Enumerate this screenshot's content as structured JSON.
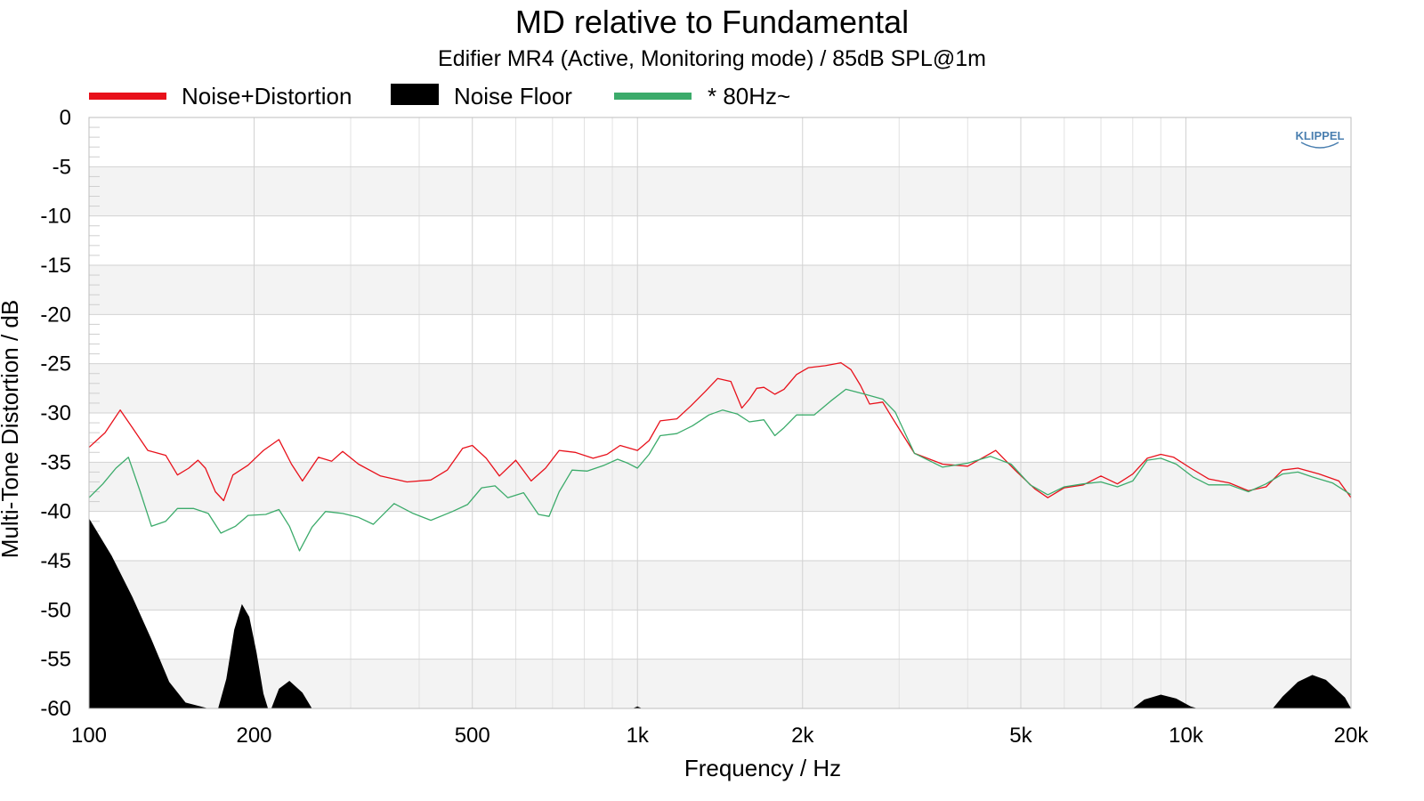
{
  "chart_data": {
    "type": "line",
    "title": "MD relative to Fundamental",
    "subtitle": "Edifier MR4 (Active, Monitoring mode) / 85dB SPL@1m",
    "xlabel": "Frequency / Hz",
    "ylabel": "Multi-Tone Distortion / dB",
    "xscale": "log",
    "xlim": [
      100,
      20000
    ],
    "ylim": [
      -60,
      0
    ],
    "x_ticks": [
      100,
      200,
      500,
      1000,
      2000,
      5000,
      10000,
      20000
    ],
    "x_tick_labels": [
      "100",
      "200",
      "500",
      "1k",
      "2k",
      "5k",
      "10k",
      "20k"
    ],
    "y_ticks": [
      0,
      -5,
      -10,
      -15,
      -20,
      -25,
      -30,
      -35,
      -40,
      -45,
      -50,
      -55,
      -60
    ],
    "y_tick_labels": [
      "0",
      "-5",
      "-10",
      "-15",
      "-20",
      "-25",
      "-30",
      "-35",
      "-40",
      "-45",
      "-50",
      "-55",
      "-60"
    ],
    "grid": true,
    "legend_position": "top-left",
    "logo_text": "KLIPPEL",
    "series": [
      {
        "name": "Noise+Distortion",
        "style": "line",
        "color": "#e8111b",
        "points": [
          [
            100,
            -33.5
          ],
          [
            107,
            -32
          ],
          [
            114,
            -29.7
          ],
          [
            120,
            -31.5
          ],
          [
            128,
            -33.8
          ],
          [
            138,
            -34.3
          ],
          [
            145,
            -36.3
          ],
          [
            152,
            -35.6
          ],
          [
            158,
            -34.8
          ],
          [
            163,
            -35.6
          ],
          [
            170,
            -38
          ],
          [
            176,
            -38.9
          ],
          [
            183,
            -36.3
          ],
          [
            195,
            -35.3
          ],
          [
            208,
            -33.8
          ],
          [
            222,
            -32.7
          ],
          [
            234,
            -35.2
          ],
          [
            245,
            -36.9
          ],
          [
            262,
            -34.5
          ],
          [
            277,
            -34.9
          ],
          [
            290,
            -33.9
          ],
          [
            310,
            -35.2
          ],
          [
            340,
            -36.4
          ],
          [
            380,
            -37
          ],
          [
            420,
            -36.8
          ],
          [
            450,
            -35.8
          ],
          [
            480,
            -33.6
          ],
          [
            500,
            -33.3
          ],
          [
            530,
            -34.6
          ],
          [
            560,
            -36.4
          ],
          [
            600,
            -34.8
          ],
          [
            640,
            -36.9
          ],
          [
            680,
            -35.6
          ],
          [
            720,
            -33.8
          ],
          [
            770,
            -34
          ],
          [
            830,
            -34.6
          ],
          [
            880,
            -34.2
          ],
          [
            930,
            -33.3
          ],
          [
            1000,
            -33.8
          ],
          [
            1050,
            -32.8
          ],
          [
            1100,
            -30.8
          ],
          [
            1180,
            -30.6
          ],
          [
            1250,
            -29.3
          ],
          [
            1330,
            -27.8
          ],
          [
            1400,
            -26.5
          ],
          [
            1480,
            -26.8
          ],
          [
            1550,
            -29.5
          ],
          [
            1600,
            -28.6
          ],
          [
            1650,
            -27.5
          ],
          [
            1700,
            -27.4
          ],
          [
            1780,
            -28.1
          ],
          [
            1850,
            -27.6
          ],
          [
            1950,
            -26.1
          ],
          [
            2050,
            -25.4
          ],
          [
            2200,
            -25.2
          ],
          [
            2350,
            -24.9
          ],
          [
            2450,
            -25.6
          ],
          [
            2550,
            -27.2
          ],
          [
            2650,
            -29.1
          ],
          [
            2800,
            -28.9
          ],
          [
            2900,
            -30.3
          ],
          [
            3200,
            -34.1
          ],
          [
            3600,
            -35.2
          ],
          [
            4000,
            -35.4
          ],
          [
            4500,
            -33.8
          ],
          [
            4900,
            -35.9
          ],
          [
            5300,
            -37.7
          ],
          [
            5600,
            -38.6
          ],
          [
            6000,
            -37.6
          ],
          [
            6500,
            -37.3
          ],
          [
            7000,
            -36.4
          ],
          [
            7500,
            -37.2
          ],
          [
            8000,
            -36.2
          ],
          [
            8500,
            -34.6
          ],
          [
            9000,
            -34.2
          ],
          [
            9500,
            -34.5
          ],
          [
            10200,
            -35.6
          ],
          [
            11000,
            -36.7
          ],
          [
            12000,
            -37.1
          ],
          [
            13000,
            -37.9
          ],
          [
            14000,
            -37.5
          ],
          [
            15000,
            -35.8
          ],
          [
            16000,
            -35.6
          ],
          [
            17500,
            -36.2
          ],
          [
            19000,
            -36.9
          ],
          [
            20000,
            -38.6
          ]
        ]
      },
      {
        "name": "Noise Floor",
        "style": "filled",
        "color": "#000000",
        "points": [
          [
            100,
            -40.7
          ],
          [
            110,
            -44.5
          ],
          [
            120,
            -48.7
          ],
          [
            130,
            -53
          ],
          [
            140,
            -57.3
          ],
          [
            150,
            -59.4
          ],
          [
            165,
            -60
          ],
          [
            172,
            -60
          ],
          [
            178,
            -57
          ],
          [
            184,
            -52
          ],
          [
            190,
            -49.4
          ],
          [
            196,
            -50.7
          ],
          [
            202,
            -54.3
          ],
          [
            208,
            -58.5
          ],
          [
            212,
            -60
          ],
          [
            215,
            -60
          ],
          [
            222,
            -58
          ],
          [
            232,
            -57.2
          ],
          [
            245,
            -58.4
          ],
          [
            255,
            -60
          ],
          [
            980,
            -60
          ],
          [
            1000,
            -59.8
          ],
          [
            1020,
            -60
          ],
          [
            8000,
            -60
          ],
          [
            8400,
            -59.1
          ],
          [
            9000,
            -58.6
          ],
          [
            9600,
            -59
          ],
          [
            10200,
            -59.8
          ],
          [
            10500,
            -60
          ],
          [
            14400,
            -60
          ],
          [
            15000,
            -58.8
          ],
          [
            16000,
            -57.3
          ],
          [
            17000,
            -56.6
          ],
          [
            18000,
            -57.1
          ],
          [
            19500,
            -58.9
          ],
          [
            20000,
            -60
          ]
        ]
      },
      {
        "name": "* 80Hz~",
        "style": "line",
        "color": "#3cab6b",
        "points": [
          [
            100,
            -38.6
          ],
          [
            106,
            -37.2
          ],
          [
            112,
            -35.6
          ],
          [
            118,
            -34.5
          ],
          [
            124,
            -38
          ],
          [
            130,
            -41.5
          ],
          [
            138,
            -41
          ],
          [
            145,
            -39.7
          ],
          [
            155,
            -39.7
          ],
          [
            165,
            -40.2
          ],
          [
            174,
            -42.2
          ],
          [
            185,
            -41.5
          ],
          [
            195,
            -40.4
          ],
          [
            210,
            -40.3
          ],
          [
            222,
            -39.8
          ],
          [
            232,
            -41.5
          ],
          [
            242,
            -44
          ],
          [
            255,
            -41.6
          ],
          [
            270,
            -40
          ],
          [
            290,
            -40.2
          ],
          [
            310,
            -40.6
          ],
          [
            330,
            -41.3
          ],
          [
            360,
            -39.2
          ],
          [
            390,
            -40.2
          ],
          [
            420,
            -40.9
          ],
          [
            460,
            -40
          ],
          [
            490,
            -39.3
          ],
          [
            520,
            -37.6
          ],
          [
            550,
            -37.4
          ],
          [
            580,
            -38.6
          ],
          [
            620,
            -38.1
          ],
          [
            660,
            -40.3
          ],
          [
            690,
            -40.5
          ],
          [
            720,
            -38
          ],
          [
            760,
            -35.8
          ],
          [
            810,
            -35.9
          ],
          [
            870,
            -35.3
          ],
          [
            920,
            -34.7
          ],
          [
            960,
            -35.1
          ],
          [
            1000,
            -35.6
          ],
          [
            1050,
            -34.2
          ],
          [
            1100,
            -32.3
          ],
          [
            1180,
            -32.1
          ],
          [
            1260,
            -31.3
          ],
          [
            1350,
            -30.2
          ],
          [
            1430,
            -29.7
          ],
          [
            1520,
            -30.1
          ],
          [
            1600,
            -30.9
          ],
          [
            1700,
            -30.7
          ],
          [
            1780,
            -32.3
          ],
          [
            1850,
            -31.5
          ],
          [
            1950,
            -30.2
          ],
          [
            2100,
            -30.2
          ],
          [
            2250,
            -28.8
          ],
          [
            2400,
            -27.6
          ],
          [
            2600,
            -28.1
          ],
          [
            2800,
            -28.6
          ],
          [
            2950,
            -29.9
          ],
          [
            3200,
            -34.1
          ],
          [
            3600,
            -35.5
          ],
          [
            4000,
            -35.1
          ],
          [
            4400,
            -34.4
          ],
          [
            4800,
            -35.2
          ],
          [
            5200,
            -37.3
          ],
          [
            5600,
            -38.3
          ],
          [
            6000,
            -37.5
          ],
          [
            6500,
            -37.2
          ],
          [
            7000,
            -37
          ],
          [
            7500,
            -37.5
          ],
          [
            8000,
            -36.9
          ],
          [
            8500,
            -34.8
          ],
          [
            9000,
            -34.6
          ],
          [
            9600,
            -35.2
          ],
          [
            10300,
            -36.5
          ],
          [
            11000,
            -37.3
          ],
          [
            12000,
            -37.3
          ],
          [
            13000,
            -38
          ],
          [
            14000,
            -37.2
          ],
          [
            15000,
            -36.2
          ],
          [
            16000,
            -36
          ],
          [
            17000,
            -36.5
          ],
          [
            18500,
            -37.1
          ],
          [
            20000,
            -38.3
          ]
        ]
      }
    ]
  }
}
